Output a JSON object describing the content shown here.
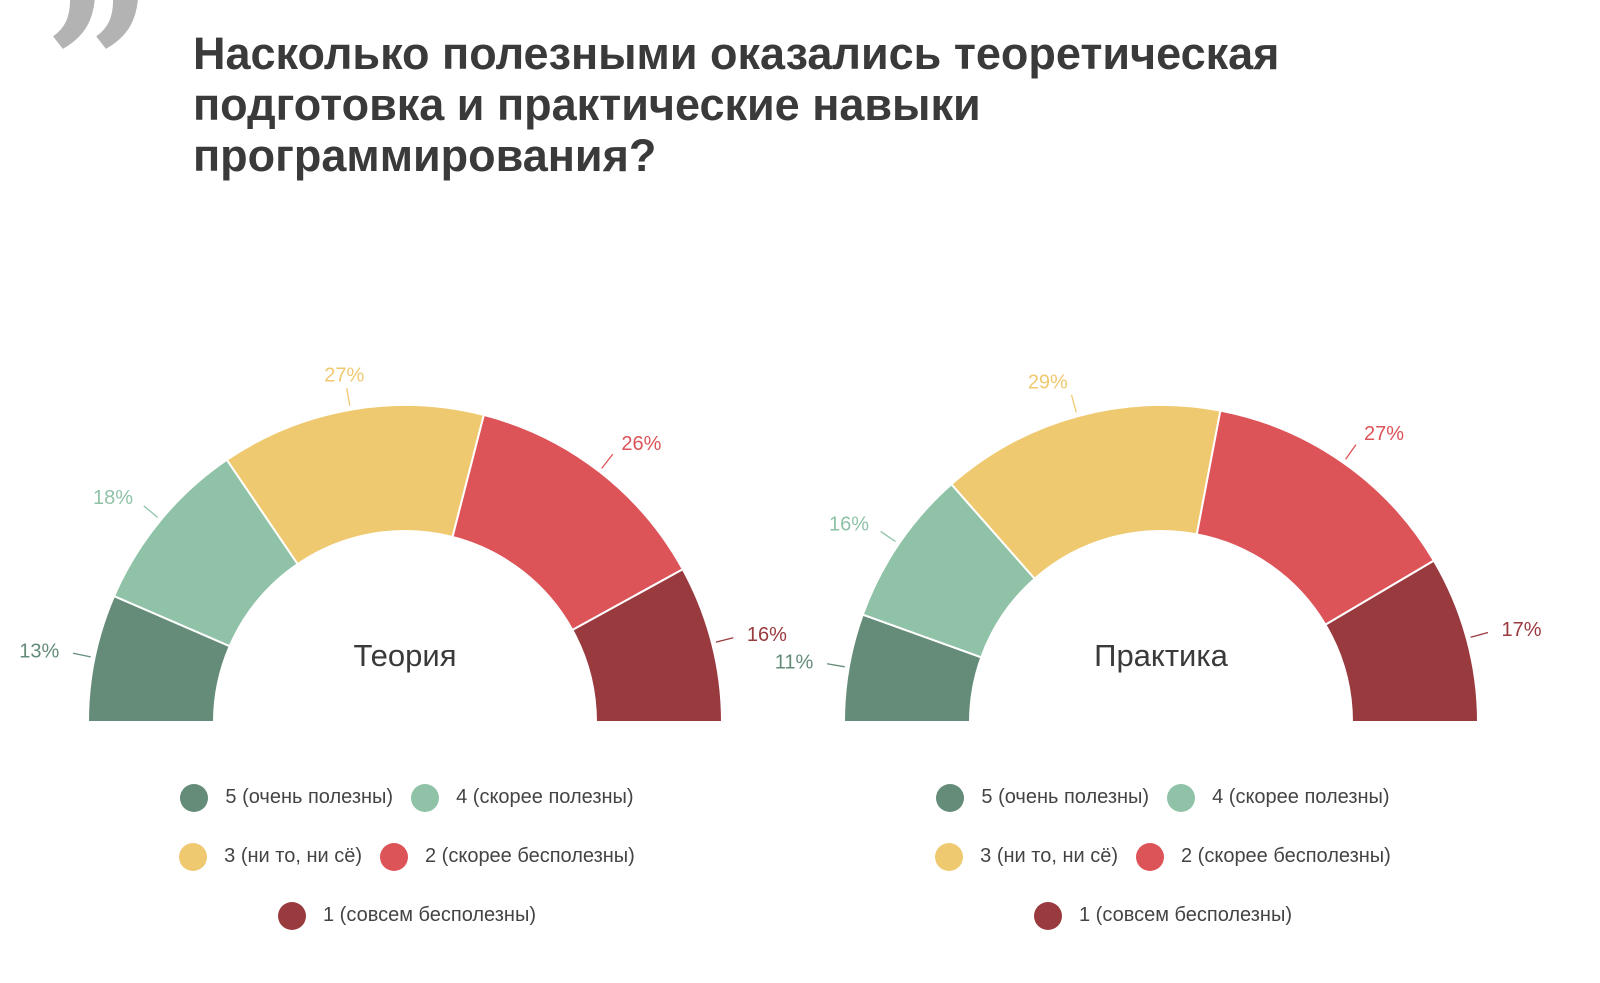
{
  "title": "Насколько полезными оказались теоретическая подготовка и практические навыки программирования?",
  "quote_icon": "closing-quote-icon",
  "chart_data": [
    {
      "type": "pie",
      "variant": "semi-donut",
      "center_label": "Теория",
      "categories": [
        "5 (очень полезны)",
        "4 (скорее полезны)",
        "3 (ни то, ни сё)",
        "2 (скорее бесполезны)",
        "1 (совсем бесполезны)"
      ],
      "values": [
        13,
        18,
        27,
        26,
        16
      ],
      "labels": [
        "13%",
        "18%",
        "27%",
        "26%",
        "16%"
      ],
      "colors": [
        "#648c78",
        "#90c2a7",
        "#efc970",
        "#dc5358",
        "#983a3e"
      ],
      "legend_position": "bottom"
    },
    {
      "type": "pie",
      "variant": "semi-donut",
      "center_label": "Практика",
      "categories": [
        "5 (очень полезны)",
        "4 (скорее полезны)",
        "3 (ни то, ни сё)",
        "2 (скорее бесполезны)",
        "1 (совсем бесполезны)"
      ],
      "values": [
        11,
        16,
        29,
        27,
        17
      ],
      "labels": [
        "11%",
        "16%",
        "29%",
        "27%",
        "17%"
      ],
      "colors": [
        "#648c78",
        "#90c2a7",
        "#efc970",
        "#dc5358",
        "#983a3e"
      ],
      "legend_position": "bottom"
    }
  ]
}
